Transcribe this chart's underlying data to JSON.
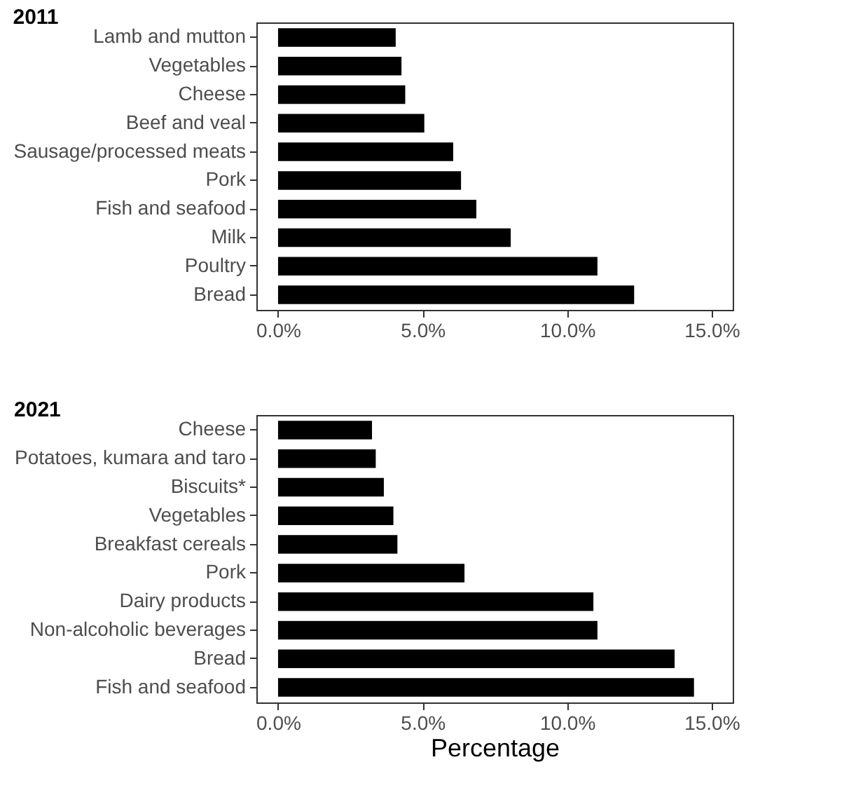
{
  "chart_data": [
    {
      "type": "bar",
      "title": "2011",
      "orientation": "horizontal",
      "categories": [
        "Lamb and mutton",
        "Vegetables",
        "Cheese",
        "Beef and veal",
        "Sausage/processed meats",
        "Pork",
        "Fish and seafood",
        "Milk",
        "Poultry",
        "Bread"
      ],
      "values": [
        4.07,
        4.27,
        4.4,
        5.06,
        6.06,
        6.33,
        6.86,
        8.05,
        11.05,
        12.32
      ],
      "color": "#000000",
      "xlim": [
        -0.75,
        15.73
      ],
      "xticks": [
        {
          "value": 0,
          "label": "0.0%"
        },
        {
          "value": 5,
          "label": "5.0%"
        },
        {
          "value": 10,
          "label": "10.0%"
        },
        {
          "value": 15,
          "label": "15.0%"
        }
      ],
      "grid": false
    },
    {
      "type": "bar",
      "title": "2021",
      "orientation": "horizontal",
      "xlabel": "Percentage",
      "categories": [
        "Cheese",
        "Potatoes, kumara and taro",
        "Biscuits*",
        "Vegetables",
        "Breakfast cereals",
        "Pork",
        "Dairy products",
        "Non-alcoholic beverages",
        "Bread",
        "Fish and seafood"
      ],
      "values": [
        3.25,
        3.38,
        3.66,
        3.99,
        4.13,
        6.45,
        10.91,
        11.05,
        13.72,
        14.39
      ],
      "color": "#000000",
      "xlim": [
        -0.75,
        15.73
      ],
      "xticks": [
        {
          "value": 0,
          "label": "0.0%"
        },
        {
          "value": 5,
          "label": "5.0%"
        },
        {
          "value": 10,
          "label": "10.0%"
        },
        {
          "value": 15,
          "label": "15.0%"
        }
      ],
      "grid": false
    }
  ]
}
